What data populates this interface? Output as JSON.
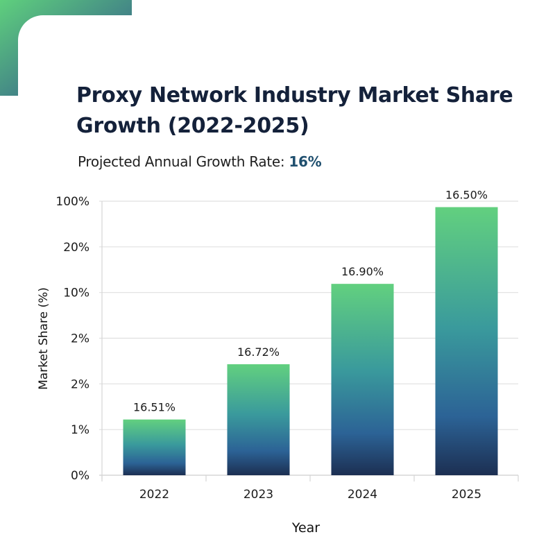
{
  "header": {
    "title": "Proxy Network Industry Market Share Growth (2022-2025)",
    "subtitle_prefix": "Projected Annual Growth Rate: ",
    "subtitle_rate": "16%"
  },
  "colors": {
    "title": "#14213a",
    "rate_highlight": "#1f4f6e",
    "bar_gradient_top": "#62d07f",
    "bar_gradient_mid": "#3a9a9c",
    "bar_gradient_lower": "#2c6396",
    "bar_gradient_bottom": "#1c2f52",
    "gridline": "#e0e0e0",
    "axis": "#d5d5d5",
    "corner_gradient_start": "#5fd07d",
    "corner_gradient_end": "#2d4b8e"
  },
  "chart_data": {
    "type": "bar",
    "title": "Proxy Network Industry Market Share Growth (2022-2025)",
    "subtitle": "Projected Annual Growth Rate: 16%",
    "xlabel": "Year",
    "ylabel": "Market Share (%)",
    "categories": [
      "2022",
      "2023",
      "2024",
      "2025"
    ],
    "y_ticks": [
      "0%",
      "1%",
      "2%",
      "2%",
      "10%",
      "20%",
      "100%"
    ],
    "y_scale_note": "tick labels are evenly spaced (non-linear); values below are bar heights in tick-index units",
    "ylim": [
      0,
      6
    ],
    "values": [
      1.22,
      2.43,
      4.19,
      5.87
    ],
    "data_labels": [
      "16.51%",
      "16.72%",
      "16.90%",
      "16.50%"
    ],
    "grid": "horizontal",
    "legend": "none"
  }
}
